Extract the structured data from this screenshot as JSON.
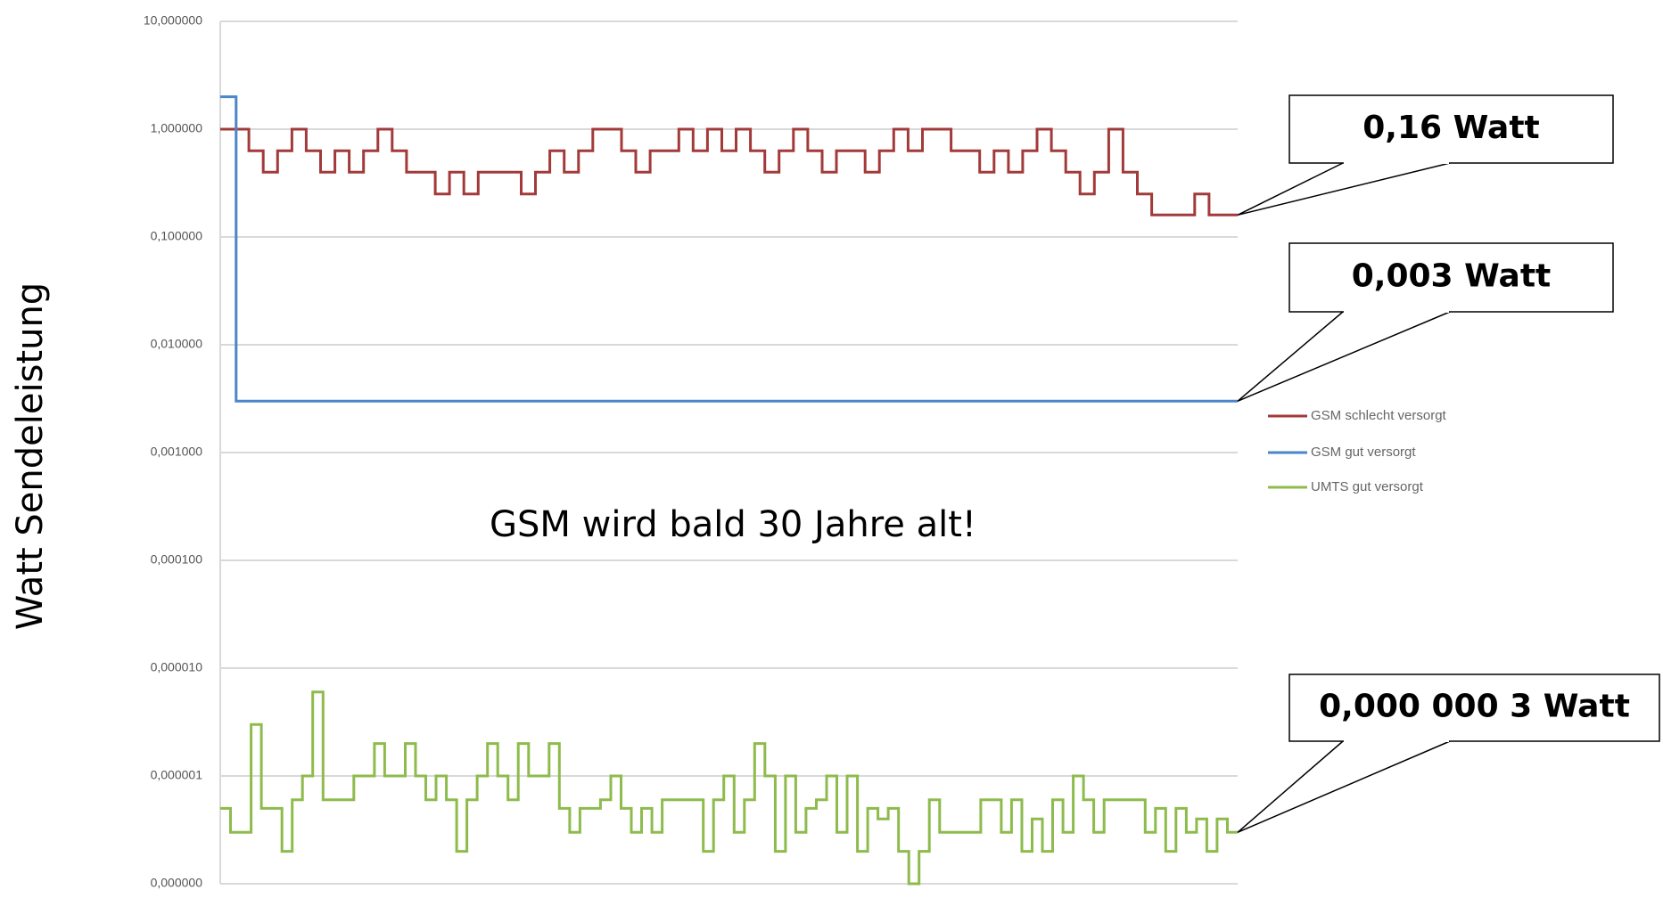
{
  "chart_data": {
    "type": "line",
    "step": true,
    "y_label": "Watt Sendeleistung",
    "annotation": "GSM wird bald 30 Jahre alt!",
    "log_y": true,
    "grid": true,
    "ylim": [
      1e-07,
      10
    ],
    "yticks": [
      {
        "value": 10,
        "label": "10,000000"
      },
      {
        "value": 1,
        "label": "1,000000"
      },
      {
        "value": 0.1,
        "label": "0,100000"
      },
      {
        "value": 0.01,
        "label": "0,010000"
      },
      {
        "value": 0.001,
        "label": "0,001000"
      },
      {
        "value": 0.0001,
        "label": "0,000100"
      },
      {
        "value": 1e-05,
        "label": "0,000010"
      },
      {
        "value": 1e-06,
        "label": "0,000001"
      },
      {
        "value": 1e-07,
        "label": "0,000000"
      }
    ],
    "series": [
      {
        "name": "GSM schlecht versorgt",
        "color": "#a33a3a",
        "end_label": "0,16 Watt",
        "values": [
          1,
          1,
          0.63,
          0.4,
          0.63,
          1,
          0.63,
          0.4,
          0.63,
          0.4,
          0.63,
          1,
          0.63,
          0.4,
          0.4,
          0.25,
          0.4,
          0.25,
          0.4,
          0.4,
          0.4,
          0.25,
          0.4,
          0.63,
          0.4,
          0.63,
          1,
          1,
          0.63,
          0.4,
          0.63,
          0.63,
          1,
          0.63,
          1,
          0.63,
          1,
          0.63,
          0.4,
          0.63,
          1,
          0.63,
          0.4,
          0.63,
          0.63,
          0.4,
          0.63,
          1,
          0.63,
          1,
          1,
          0.63,
          0.63,
          0.4,
          0.63,
          0.4,
          0.63,
          1,
          0.63,
          0.4,
          0.25,
          0.4,
          1,
          0.4,
          0.25,
          0.16,
          0.16,
          0.16,
          0.25,
          0.16,
          0.16
        ]
      },
      {
        "name": "GSM gut versorgt",
        "color": "#4a86c8",
        "end_label": "0,003 Watt",
        "values": [
          2,
          0.003,
          0.003,
          0.003,
          0.003,
          0.003,
          0.003,
          0.003,
          0.003,
          0.003,
          0.003,
          0.003,
          0.003,
          0.003,
          0.003,
          0.003,
          0.003,
          0.003,
          0.003,
          0.003,
          0.003,
          0.003,
          0.003,
          0.003,
          0.003,
          0.003,
          0.003,
          0.003,
          0.003,
          0.003,
          0.003,
          0.003,
          0.003,
          0.003,
          0.003,
          0.003,
          0.003,
          0.003,
          0.003,
          0.003,
          0.003,
          0.003,
          0.003,
          0.003,
          0.003,
          0.003,
          0.003,
          0.003,
          0.003,
          0.003,
          0.003,
          0.003,
          0.003,
          0.003,
          0.003,
          0.003,
          0.003,
          0.003,
          0.003,
          0.003,
          0.003,
          0.003,
          0.003,
          0.003
        ]
      },
      {
        "name": "UMTS gut versorgt",
        "color": "#8dbb4c",
        "end_label": "0,000 000 3 Watt",
        "values": [
          5e-07,
          3e-07,
          3e-07,
          3e-06,
          5e-07,
          5e-07,
          2e-07,
          6e-07,
          1e-06,
          6e-06,
          6e-07,
          6e-07,
          6e-07,
          1e-06,
          1e-06,
          2e-06,
          1e-06,
          1e-06,
          2e-06,
          1e-06,
          6e-07,
          1e-06,
          6e-07,
          2e-07,
          6e-07,
          1e-06,
          2e-06,
          1e-06,
          6e-07,
          2e-06,
          1e-06,
          1e-06,
          2e-06,
          5e-07,
          3e-07,
          5e-07,
          5e-07,
          6e-07,
          1e-06,
          5e-07,
          3e-07,
          5e-07,
          3e-07,
          6e-07,
          6e-07,
          6e-07,
          6e-07,
          2e-07,
          6e-07,
          1e-06,
          3e-07,
          6e-07,
          2e-06,
          1e-06,
          2e-07,
          1e-06,
          3e-07,
          5e-07,
          6e-07,
          1e-06,
          3e-07,
          1e-06,
          2e-07,
          5e-07,
          4e-07,
          5e-07,
          2e-07,
          1e-07,
          2e-07,
          6e-07,
          3e-07,
          3e-07,
          3e-07,
          3e-07,
          6e-07,
          6e-07,
          3e-07,
          6e-07,
          2e-07,
          4e-07,
          2e-07,
          6e-07,
          3e-07,
          1e-06,
          6e-07,
          3e-07,
          6e-07,
          6e-07,
          6e-07,
          6e-07,
          3e-07,
          5e-07,
          2e-07,
          5e-07,
          3e-07,
          4e-07,
          2e-07,
          4e-07,
          3e-07
        ]
      }
    ]
  }
}
